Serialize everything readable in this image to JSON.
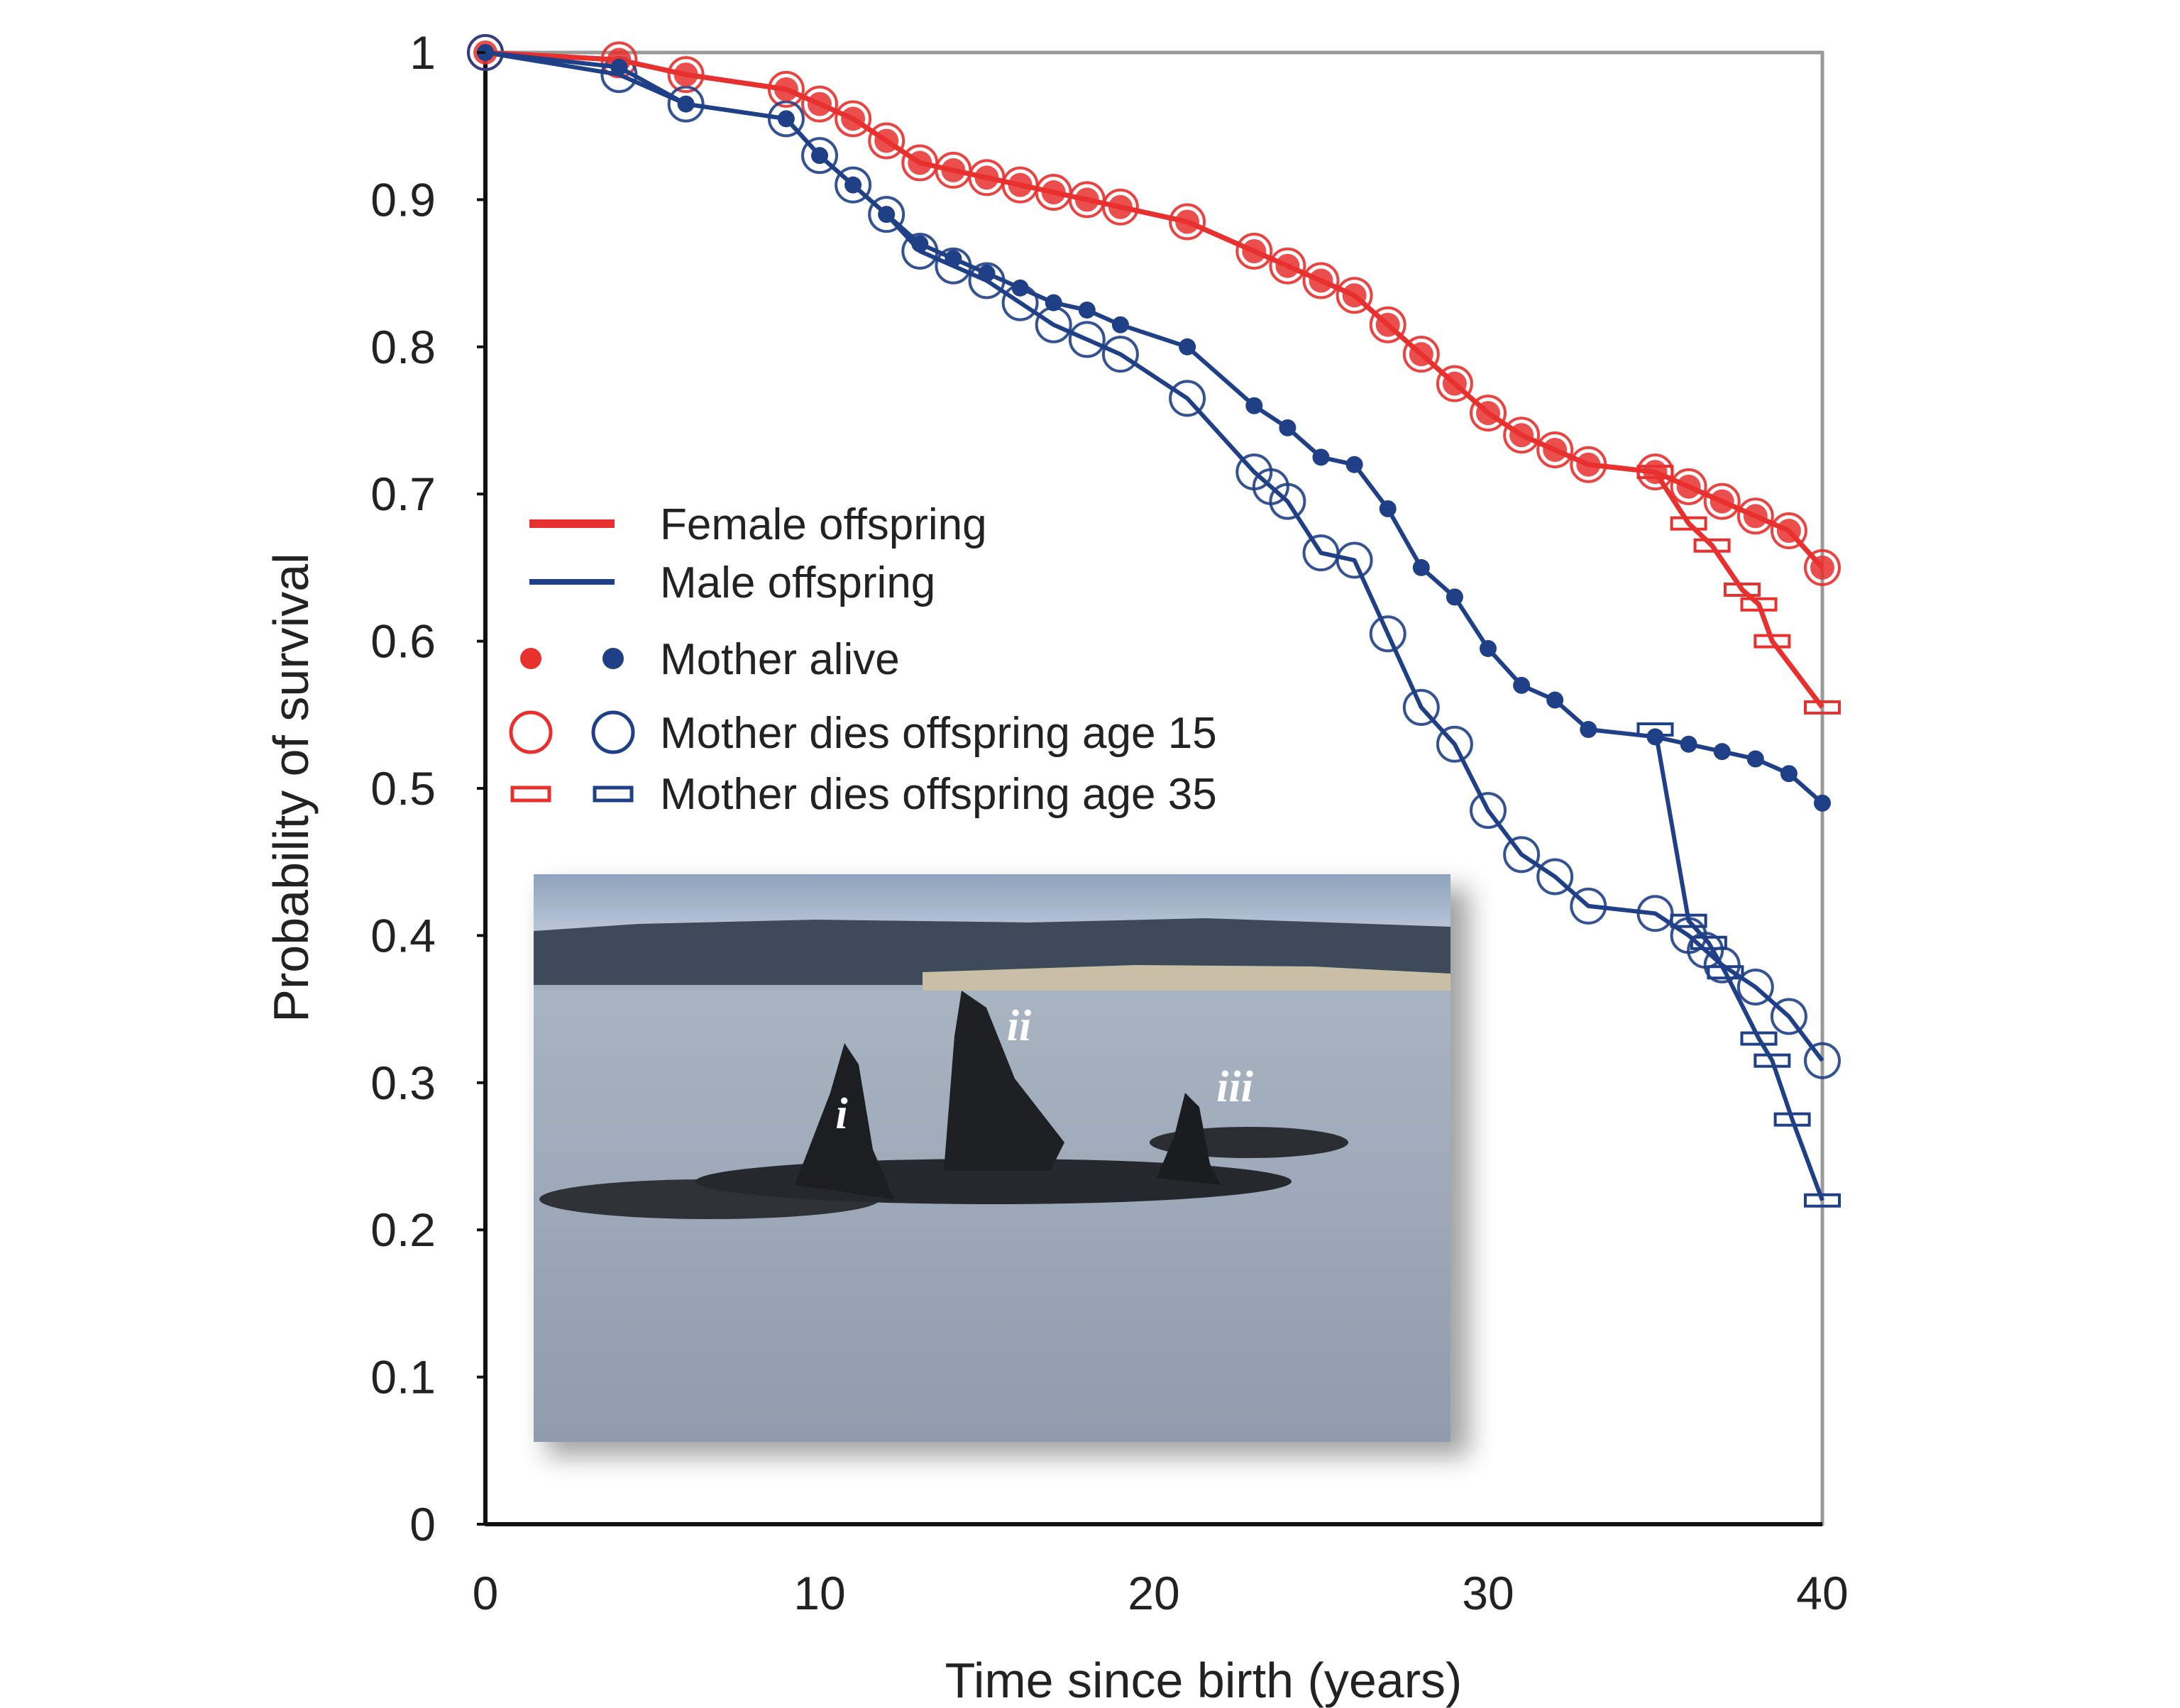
{
  "chart_data": {
    "type": "line",
    "title": "",
    "xlabel": "Time since birth (years)",
    "ylabel": "Probability of survival",
    "xlim": [
      0,
      40
    ],
    "ylim": [
      0,
      1
    ],
    "x_ticks": [
      "0",
      "10",
      "20",
      "30",
      "40"
    ],
    "y_ticks": [
      "0",
      "0.1",
      "0.2",
      "0.3",
      "0.4",
      "0.5",
      "0.6",
      "0.7",
      "0.8",
      "0.9",
      "1"
    ],
    "grid": false,
    "legend_position": "center-left",
    "legend": {
      "female": "Female offspring",
      "male": "Male offspring",
      "alive": "Mother alive",
      "dies15": "Mother dies offspring age 15",
      "dies35": "Mother dies offspring age 35"
    },
    "colors": {
      "female": "#e8302e",
      "male": "#1f3f86"
    },
    "series": [
      {
        "sex": "female",
        "condition": "alive",
        "marker": "dot",
        "x": [
          0,
          4,
          6,
          9,
          10,
          11,
          12,
          13,
          14,
          15,
          16,
          17,
          18,
          19,
          21,
          23,
          24,
          25,
          26,
          27,
          28,
          29,
          30,
          31,
          32,
          33,
          35,
          36,
          37,
          38,
          39,
          40
        ],
        "y": [
          1,
          0.995,
          0.985,
          0.975,
          0.965,
          0.955,
          0.94,
          0.925,
          0.92,
          0.915,
          0.91,
          0.905,
          0.9,
          0.895,
          0.885,
          0.865,
          0.855,
          0.845,
          0.835,
          0.815,
          0.795,
          0.775,
          0.755,
          0.74,
          0.73,
          0.72,
          0.715,
          0.705,
          0.695,
          0.685,
          0.675,
          0.65
        ]
      },
      {
        "sex": "female",
        "condition": "dies15",
        "marker": "circle",
        "x": [
          0,
          4,
          6,
          9,
          10,
          11,
          12,
          13,
          14,
          15,
          16,
          17,
          18,
          19,
          21,
          23,
          24,
          25,
          26,
          27,
          28,
          29,
          30,
          31,
          32,
          33,
          35,
          36,
          37,
          38,
          39,
          40
        ],
        "y": [
          1,
          0.995,
          0.985,
          0.975,
          0.965,
          0.955,
          0.94,
          0.925,
          0.92,
          0.915,
          0.91,
          0.905,
          0.9,
          0.895,
          0.885,
          0.865,
          0.855,
          0.845,
          0.835,
          0.815,
          0.795,
          0.775,
          0.755,
          0.74,
          0.73,
          0.72,
          0.715,
          0.705,
          0.695,
          0.685,
          0.675,
          0.65
        ]
      },
      {
        "sex": "female",
        "condition": "dies35",
        "marker": "rect",
        "x": [
          35,
          36,
          36.7,
          37.6,
          38.1,
          38.5,
          40
        ],
        "y": [
          0.715,
          0.68,
          0.665,
          0.635,
          0.625,
          0.6,
          0.555
        ]
      },
      {
        "sex": "male",
        "condition": "alive",
        "marker": "dot",
        "x": [
          0,
          4,
          6,
          9,
          10,
          11,
          12,
          13,
          14,
          15,
          16,
          17,
          18,
          19,
          21,
          23,
          24,
          25,
          26,
          27,
          28,
          29,
          30,
          31,
          32,
          33,
          35,
          36,
          37,
          38,
          39,
          40
        ],
        "y": [
          1,
          0.99,
          0.965,
          0.955,
          0.93,
          0.91,
          0.89,
          0.87,
          0.86,
          0.85,
          0.84,
          0.83,
          0.825,
          0.815,
          0.8,
          0.76,
          0.745,
          0.725,
          0.72,
          0.69,
          0.65,
          0.63,
          0.595,
          0.57,
          0.56,
          0.54,
          0.535,
          0.53,
          0.525,
          0.52,
          0.51,
          0.49
        ]
      },
      {
        "sex": "male",
        "condition": "dies15",
        "marker": "circle",
        "x": [
          0,
          4,
          6,
          9,
          10,
          11,
          12,
          13,
          14,
          15,
          16,
          17,
          18,
          19,
          21,
          23,
          23.5,
          24,
          25,
          26,
          27,
          28,
          29,
          30,
          31,
          32,
          33,
          35,
          36,
          36.5,
          37,
          38,
          39,
          40
        ],
        "y": [
          1,
          0.985,
          0.965,
          0.955,
          0.93,
          0.91,
          0.89,
          0.865,
          0.855,
          0.845,
          0.83,
          0.815,
          0.805,
          0.795,
          0.765,
          0.715,
          0.705,
          0.695,
          0.66,
          0.655,
          0.605,
          0.555,
          0.53,
          0.485,
          0.455,
          0.44,
          0.42,
          0.415,
          0.4,
          0.39,
          0.38,
          0.365,
          0.345,
          0.315
        ]
      },
      {
        "sex": "male",
        "condition": "dies35",
        "marker": "rect",
        "x": [
          35,
          36,
          36.6,
          37.1,
          38.1,
          38.5,
          39.1,
          40
        ],
        "y": [
          0.54,
          0.41,
          0.395,
          0.375,
          0.33,
          0.315,
          0.275,
          0.22
        ]
      }
    ],
    "inset_photo_labels": [
      "i",
      "ii",
      "iii"
    ]
  }
}
